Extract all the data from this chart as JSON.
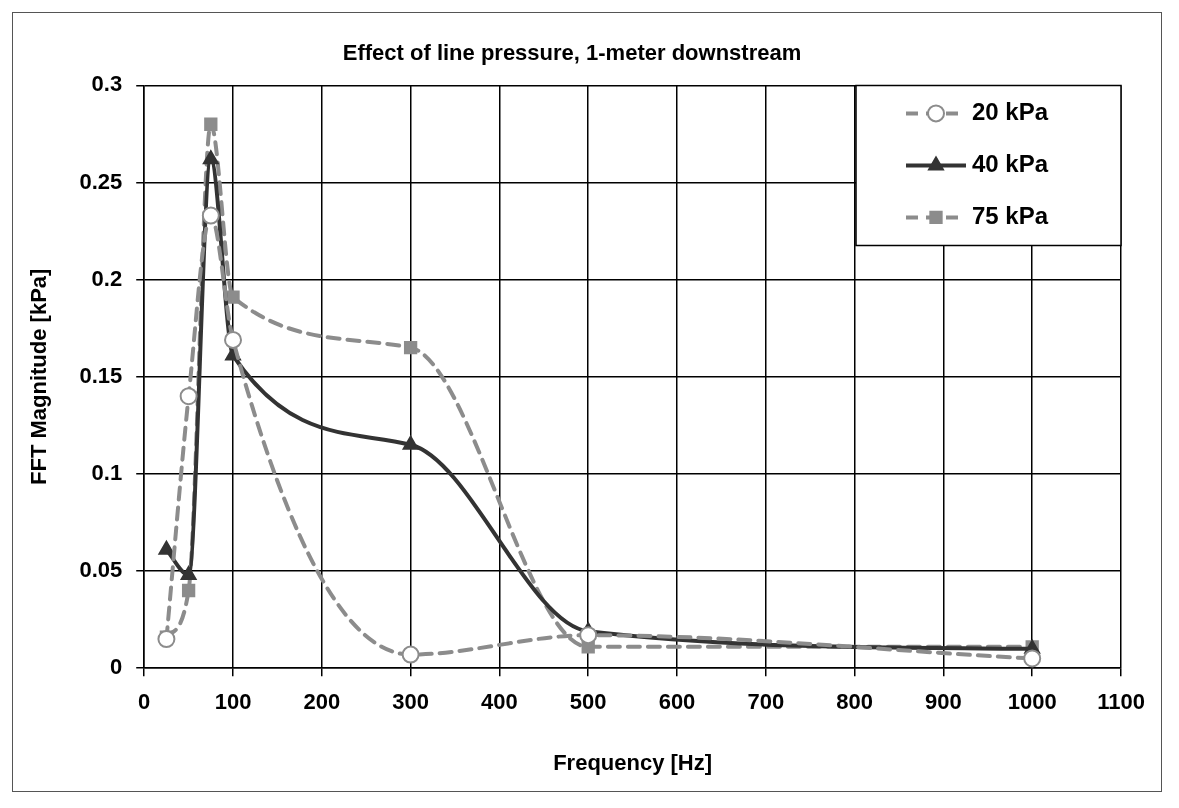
{
  "chart_data": {
    "type": "line",
    "title": "Effect of line pressure, 1-meter downstream",
    "xlabel": "Frequency [Hz]",
    "ylabel": "FFT Magnitude [kPa]",
    "x": [
      25,
      50,
      75,
      100,
      300,
      500,
      1000
    ],
    "series": [
      {
        "name": "20 kPa",
        "color": "#8c8c8c",
        "values": [
          0.015,
          0.14,
          0.233,
          0.169,
          0.007,
          0.017,
          0.005
        ],
        "marker": "circle",
        "line_style": "dashed"
      },
      {
        "name": "40 kPa",
        "color": "#333333",
        "values": [
          0.061,
          0.048,
          0.262,
          0.161,
          0.115,
          0.019,
          0.01
        ],
        "marker": "triangle",
        "line_style": "solid"
      },
      {
        "name": "75 kPa",
        "color": "#8c8c8c",
        "values": [
          0.016,
          0.04,
          0.28,
          0.191,
          0.165,
          0.011,
          0.011
        ],
        "marker": "square",
        "line_style": "dashed"
      }
    ],
    "xlim": [
      0,
      1100
    ],
    "xticks": [
      0,
      100,
      200,
      300,
      400,
      500,
      600,
      700,
      800,
      900,
      1000,
      1100
    ],
    "ylim": [
      0,
      0.3
    ],
    "yticks": [
      0,
      0.05,
      0.1,
      0.15,
      0.2,
      0.25,
      0.3
    ],
    "grid": true,
    "legend": "top right"
  }
}
